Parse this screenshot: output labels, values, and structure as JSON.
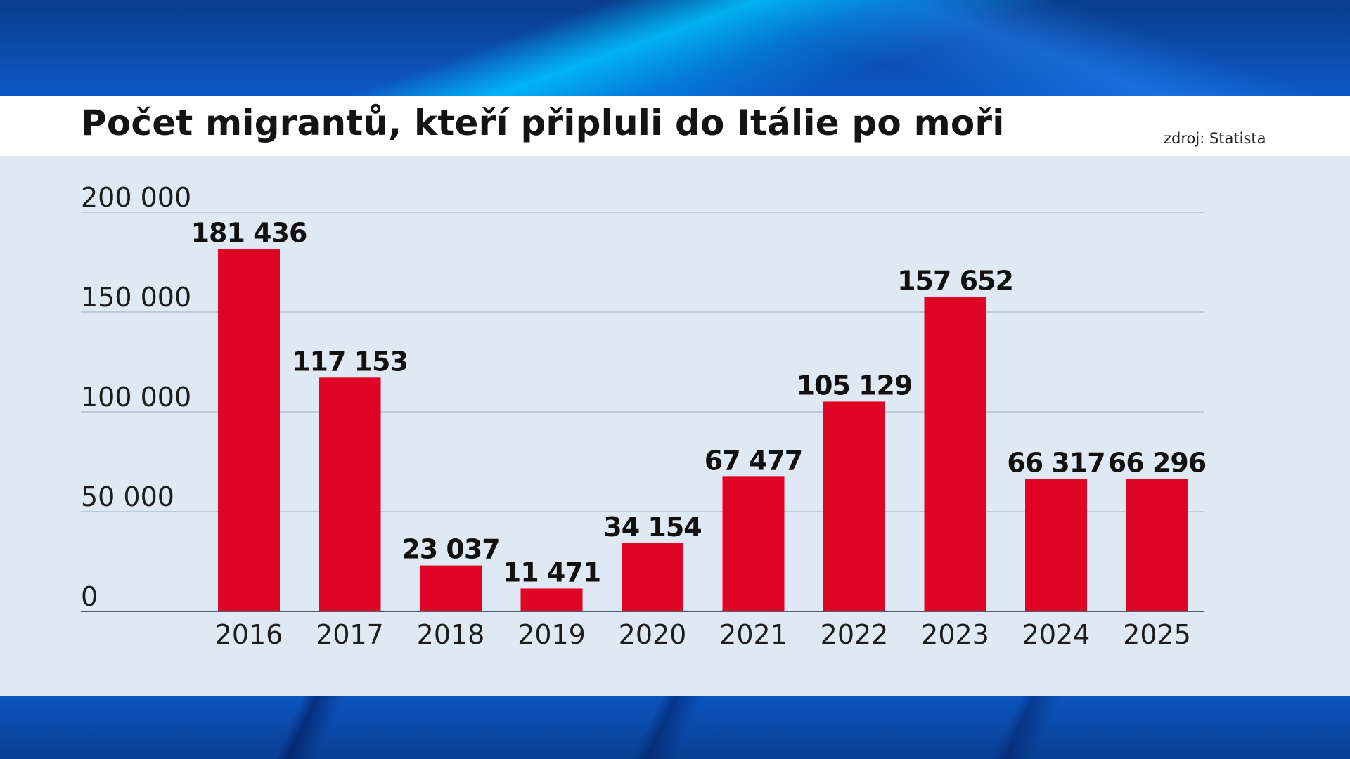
{
  "title": "Počet migrantů, kteří připluli do Itálie po moři",
  "source": "zdroj: Statista",
  "colors": {
    "bar": "#e00524",
    "grid": "#9aa9c0",
    "axis": "#4a5a78",
    "panel": "#dfe9f4"
  },
  "chart_data": {
    "type": "bar",
    "title": "Počet migrantů, kteří připluli do Itálie po moři",
    "categories": [
      "2016",
      "2017",
      "2018",
      "2019",
      "2020",
      "2021",
      "2022",
      "2023",
      "2024",
      "2025"
    ],
    "values": [
      181436,
      117153,
      23037,
      11471,
      34154,
      67477,
      105129,
      157652,
      66317,
      66296
    ],
    "value_labels": [
      "181 436",
      "117 153",
      "23 037",
      "11 471",
      "34 154",
      "67 477",
      "105 129",
      "157 652",
      "66 317",
      "66 296"
    ],
    "ylim": [
      0,
      200000
    ],
    "yticks": [
      0,
      50000,
      100000,
      150000,
      200000
    ],
    "ytick_labels": [
      "0",
      "50 000",
      "100 000",
      "150 000",
      "200 000"
    ],
    "grid": true,
    "legend": "none"
  }
}
